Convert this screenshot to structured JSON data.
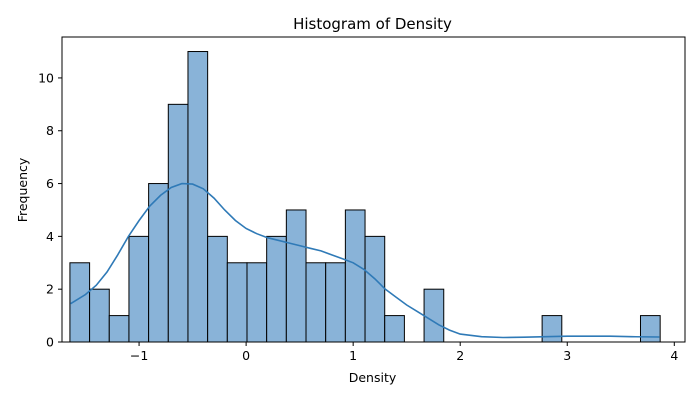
{
  "chart_data": {
    "type": "bar",
    "title": "Histogram of Density",
    "xlabel": "Density",
    "ylabel": "Frequency",
    "xlim": [
      -1.72,
      4.1
    ],
    "ylim": [
      0,
      11.55
    ],
    "x_ticks": [
      -1,
      0,
      1,
      2,
      3,
      4
    ],
    "x_tick_labels": [
      "−1",
      "0",
      "1",
      "2",
      "3",
      "4"
    ],
    "y_ticks": [
      0,
      2,
      4,
      6,
      8,
      10
    ],
    "y_tick_labels": [
      "0",
      "2",
      "4",
      "6",
      "8",
      "10"
    ],
    "grid": false,
    "bar_color": "#89b3d8",
    "edge_color": "#000000",
    "kde_color": "#2f7ab7",
    "bins": {
      "start": -1.646,
      "width": 0.1838,
      "counts": [
        3,
        2,
        1,
        4,
        6,
        9,
        11,
        4,
        3,
        3,
        4,
        5,
        3,
        3,
        5,
        4,
        1,
        0,
        2,
        0,
        0,
        0,
        0,
        0,
        1,
        0,
        0,
        0,
        0,
        1
      ]
    },
    "kde": {
      "x": [
        -1.64,
        -1.5,
        -1.4,
        -1.3,
        -1.2,
        -1.1,
        -1.0,
        -0.9,
        -0.8,
        -0.7,
        -0.6,
        -0.5,
        -0.4,
        -0.3,
        -0.2,
        -0.1,
        0.0,
        0.1,
        0.2,
        0.3,
        0.4,
        0.5,
        0.6,
        0.7,
        0.8,
        0.9,
        1.0,
        1.1,
        1.2,
        1.3,
        1.4,
        1.5,
        1.6,
        1.7,
        1.8,
        1.9,
        2.0,
        2.2,
        2.4,
        2.6,
        2.8,
        3.0,
        3.2,
        3.4,
        3.6,
        3.86
      ],
      "y": [
        1.45,
        1.8,
        2.15,
        2.65,
        3.3,
        4.0,
        4.6,
        5.15,
        5.55,
        5.85,
        6.0,
        5.98,
        5.8,
        5.45,
        5.0,
        4.6,
        4.3,
        4.1,
        3.95,
        3.85,
        3.75,
        3.65,
        3.55,
        3.45,
        3.3,
        3.15,
        3.0,
        2.75,
        2.4,
        2.0,
        1.7,
        1.4,
        1.15,
        0.9,
        0.65,
        0.45,
        0.3,
        0.2,
        0.17,
        0.18,
        0.2,
        0.22,
        0.22,
        0.22,
        0.2,
        0.19
      ]
    }
  }
}
